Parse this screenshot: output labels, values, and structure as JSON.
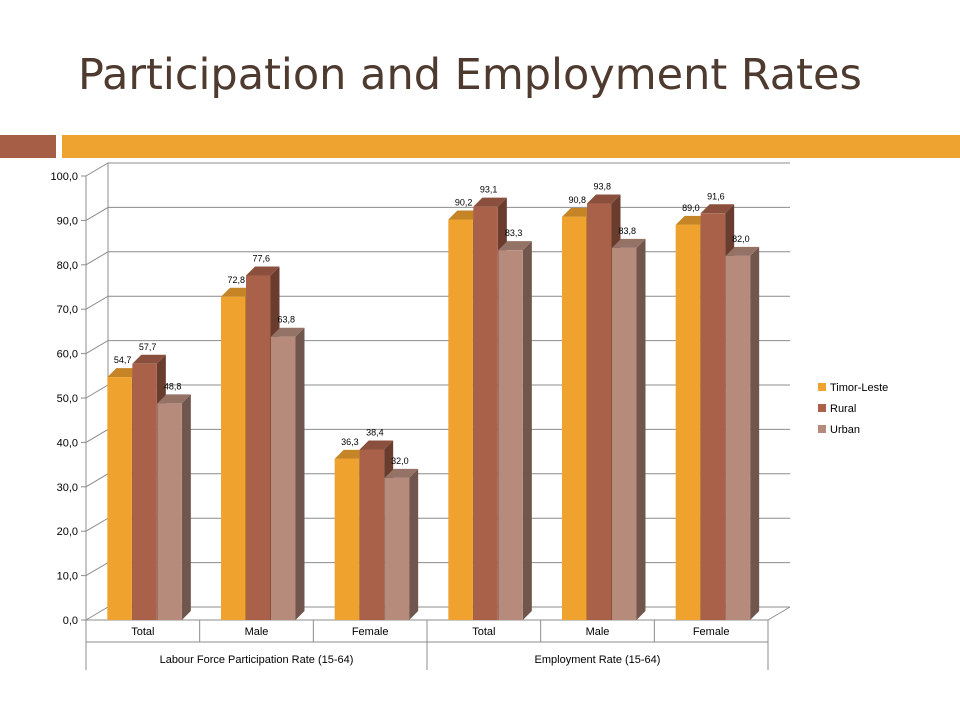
{
  "title": "Participation and Employment Rates",
  "colors": {
    "title": "#4e3a2f",
    "accent_left": "#a65f46",
    "accent_right": "#eea230",
    "grid": "#8c8c8c",
    "axis_text": "#000000"
  },
  "chart_data": {
    "type": "bar",
    "style": "3d-clustered-column",
    "groups": [
      {
        "label": "Labour Force Participation Rate (15-64)",
        "categories": [
          "Total",
          "Male",
          "Female"
        ]
      },
      {
        "label": "Employment Rate (15-64)",
        "categories": [
          "Total",
          "Male",
          "Female"
        ]
      }
    ],
    "categories": [
      "Total",
      "Male",
      "Female",
      "Total",
      "Male",
      "Female"
    ],
    "series": [
      {
        "name": "Timor-Leste",
        "color": "#f0a22e",
        "values": [
          54.7,
          72.8,
          36.3,
          90.2,
          90.8,
          89.0
        ]
      },
      {
        "name": "Rural",
        "color": "#a9614a",
        "values": [
          57.7,
          77.6,
          38.4,
          93.1,
          93.8,
          91.6
        ]
      },
      {
        "name": "Urban",
        "color": "#b68b7c",
        "values": [
          48.8,
          63.8,
          32.0,
          83.3,
          83.8,
          82.0
        ]
      }
    ],
    "data_labels": [
      [
        "54,7",
        "72,8",
        "36,3",
        "90,2",
        "90,8",
        "89,0"
      ],
      [
        "57,7",
        "77,6",
        "38,4",
        "93,1",
        "93,8",
        "91,6"
      ],
      [
        "48,8",
        "63,8",
        "32,0",
        "83,3",
        "83,8",
        "82,0"
      ]
    ],
    "yticks": [
      "0,0",
      "10,0",
      "20,0",
      "30,0",
      "40,0",
      "50,0",
      "60,0",
      "70,0",
      "80,0",
      "90,0",
      "100,0"
    ],
    "ylim": [
      0,
      100
    ],
    "grid": true,
    "legend": "right"
  }
}
